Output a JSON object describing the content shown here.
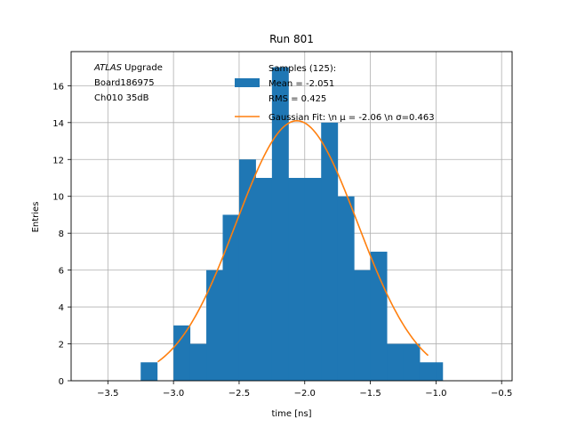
{
  "chart_data": {
    "type": "bar",
    "title": "Run 801",
    "xlabel": "time [ns]",
    "ylabel": "Entries",
    "xlim": [
      -3.78,
      -0.42
    ],
    "ylim": [
      0,
      17.85
    ],
    "xticks": [
      -3.5,
      -3.0,
      -2.5,
      -2.0,
      -1.5,
      -1.0,
      -0.5
    ],
    "xtick_labels": [
      "−3.5",
      "−3.0",
      "−2.5",
      "−2.0",
      "−1.5",
      "−1.0",
      "−0.5"
    ],
    "yticks": [
      0,
      2,
      4,
      6,
      8,
      10,
      12,
      14,
      16
    ],
    "ytick_labels": [
      "0",
      "2",
      "4",
      "6",
      "8",
      "10",
      "12",
      "14",
      "16"
    ],
    "grid": true,
    "bin_edges": [
      -3.25,
      -3.125,
      -3.0,
      -2.875,
      -2.75,
      -2.625,
      -2.5,
      -2.375,
      -2.25,
      -2.125,
      -2.0,
      -1.875,
      -1.75,
      -1.625,
      -1.5,
      -1.375,
      -1.25,
      -1.125,
      -1.0,
      -0.95
    ],
    "counts": [
      1,
      0,
      3,
      2,
      6,
      9,
      12,
      11,
      17,
      11,
      11,
      14,
      10,
      6,
      7,
      2,
      2,
      1,
      1
    ],
    "series": [
      {
        "name": "Samples (125):\n Mean = -2.051\n RMS = 0.425",
        "kind": "histogram",
        "color": "#1f77b4"
      },
      {
        "name": "Gaussian Fit: \\n μ = -2.06 \\n σ=0.463",
        "kind": "line",
        "color": "#ff7f0e",
        "mu": -2.06,
        "sigma": 0.463,
        "amplitude": 14.1,
        "x_range": [
          -3.12,
          -1.06
        ]
      }
    ],
    "legend": {
      "location": "top-right",
      "entries": [
        {
          "lines": [
            "Samples (125):",
            " Mean = -2.051",
            " RMS = 0.425"
          ],
          "marker": "patch",
          "color": "#1f77b4"
        },
        {
          "lines": [
            "Gaussian Fit: \\n μ = -2.06 \\n σ=0.463"
          ],
          "marker": "line",
          "color": "#ff7f0e"
        }
      ]
    },
    "annotation": {
      "lines": [
        "ATLAS Upgrade",
        " Board186975",
        " Ch010 35dB"
      ],
      "italic_word": "ATLAS"
    }
  }
}
